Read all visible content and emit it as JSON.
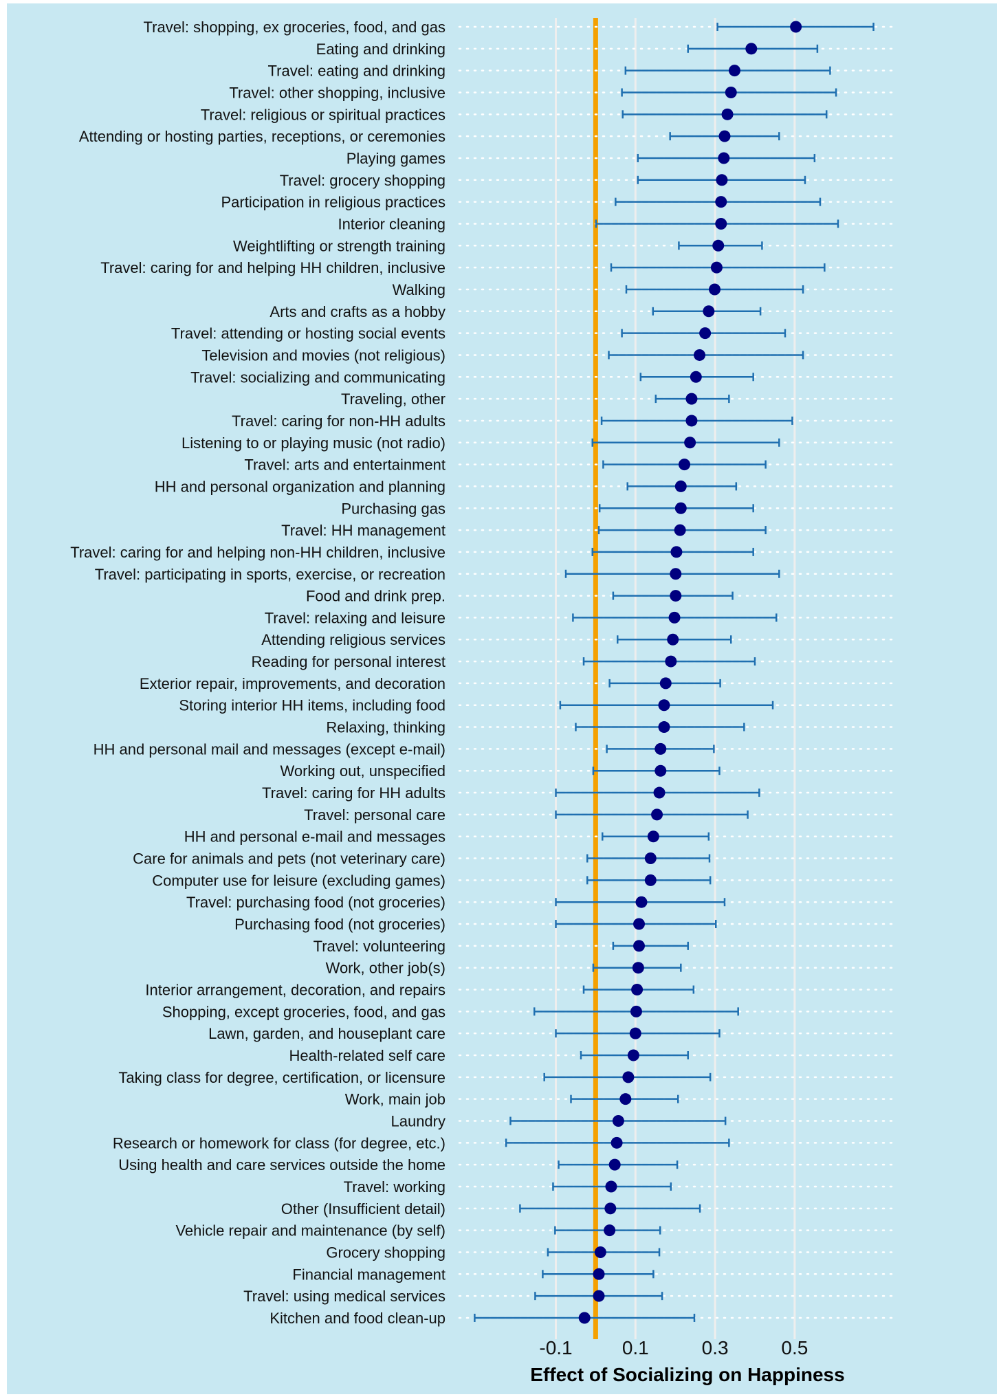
{
  "chart_data": {
    "type": "scatter",
    "subtype": "forest-plot-point-with-error-bars",
    "title": "",
    "xlabel": "Effect of Socializing on Happiness",
    "ylabel": "",
    "xticks": [
      -0.1,
      0.1,
      0.3,
      0.5
    ],
    "xtick_labels": [
      "-0.1",
      "0.1",
      "0.3",
      "0.5"
    ],
    "xlim": [
      -0.35,
      0.75
    ],
    "reference_line": 0,
    "colors": {
      "point": "#00007f",
      "errorbar": "#1f6fb0",
      "reference": "#f5a000",
      "background": "#c8e8f2",
      "grid": "#eeeeee"
    },
    "categories": [
      "Travel: shopping, ex groceries, food, and gas",
      "Eating and drinking",
      "Travel: eating and drinking",
      "Travel: other shopping, inclusive",
      "Travel: religious or spiritual practices",
      "Attending or hosting parties, receptions, or ceremonies",
      "Playing games",
      "Travel: grocery shopping",
      "Participation in religious practices",
      "Interior cleaning",
      "Weightlifting or strength training",
      "Travel: caring for and helping HH children, inclusive",
      "Walking",
      "Arts and crafts as a hobby",
      "Travel: attending or hosting social events",
      "Television and movies (not religious)",
      "Travel: socializing and communicating",
      "Traveling, other",
      "Travel: caring for non-HH adults",
      "Listening to or playing music (not radio)",
      "Travel: arts and entertainment",
      "HH and personal organization and planning",
      "Purchasing gas",
      "Travel: HH management",
      "Travel: caring for and helping non-HH children, inclusive",
      "Travel: participating in sports, exercise, or recreation",
      "Food and drink prep.",
      "Travel: relaxing and leisure",
      "Attending religious services",
      "Reading for personal interest",
      "Exterior repair, improvements, and decoration",
      "Storing interior HH items, including food",
      "Relaxing, thinking",
      "HH and personal mail and messages (except e-mail)",
      "Working out, unspecified",
      "Travel: caring for HH adults",
      "Travel: personal care",
      "HH and personal e-mail and messages",
      "Care for animals and pets (not veterinary care)",
      "Computer use for leisure (excluding games)",
      "Travel: purchasing food (not groceries)",
      "Purchasing food (not groceries)",
      "Travel: volunteering",
      "Work, other job(s)",
      "Interior arrangement, decoration, and repairs",
      "Shopping, except groceries, food, and gas",
      "Lawn, garden, and houseplant care",
      "Health-related self care",
      "Taking class for degree, certification, or licensure",
      "Work, main job",
      "Laundry",
      "Research or homework for class (for degree, etc.)",
      "Using health and care services outside the home",
      "Travel: working",
      "Other (Insufficient detail)",
      "Vehicle repair and maintenance (by self)",
      "Grocery shopping",
      "Financial management",
      "Travel: using medical services",
      "Kitchen and food clean-up"
    ],
    "estimates": [
      0.503,
      0.391,
      0.349,
      0.34,
      0.331,
      0.324,
      0.322,
      0.317,
      0.315,
      0.315,
      0.308,
      0.304,
      0.299,
      0.284,
      0.275,
      0.261,
      0.252,
      0.241,
      0.241,
      0.237,
      0.223,
      0.214,
      0.214,
      0.212,
      0.203,
      0.201,
      0.201,
      0.198,
      0.194,
      0.189,
      0.176,
      0.172,
      0.172,
      0.163,
      0.163,
      0.16,
      0.154,
      0.145,
      0.138,
      0.138,
      0.115,
      0.109,
      0.109,
      0.107,
      0.104,
      0.102,
      0.1,
      0.095,
      0.082,
      0.075,
      0.057,
      0.053,
      0.048,
      0.039,
      0.037,
      0.035,
      0.012,
      0.008,
      0.008,
      -0.028
    ],
    "lower": [
      0.306,
      0.232,
      0.075,
      0.066,
      0.068,
      0.187,
      0.106,
      0.106,
      0.05,
      0.001,
      0.209,
      0.039,
      0.077,
      0.144,
      0.066,
      0.033,
      0.113,
      0.151,
      0.015,
      -0.008,
      0.019,
      0.08,
      0.01,
      0.008,
      -0.008,
      -0.075,
      0.044,
      -0.057,
      0.055,
      -0.03,
      0.035,
      -0.089,
      -0.05,
      0.028,
      -0.006,
      -0.1,
      -0.1,
      0.017,
      -0.021,
      -0.021,
      -0.1,
      -0.1,
      0.044,
      -0.006,
      -0.03,
      -0.154,
      -0.1,
      -0.037,
      -0.129,
      -0.062,
      -0.214,
      -0.225,
      -0.093,
      -0.107,
      -0.19,
      -0.102,
      -0.12,
      -0.133,
      -0.152,
      -0.304
    ],
    "upper": [
      0.698,
      0.557,
      0.589,
      0.604,
      0.58,
      0.461,
      0.55,
      0.526,
      0.564,
      0.609,
      0.418,
      0.575,
      0.521,
      0.414,
      0.476,
      0.521,
      0.396,
      0.335,
      0.494,
      0.461,
      0.427,
      0.353,
      0.396,
      0.427,
      0.396,
      0.461,
      0.344,
      0.454,
      0.34,
      0.4,
      0.313,
      0.445,
      0.373,
      0.297,
      0.311,
      0.411,
      0.382,
      0.284,
      0.286,
      0.288,
      0.324,
      0.302,
      0.232,
      0.214,
      0.246,
      0.358,
      0.311,
      0.232,
      0.288,
      0.207,
      0.326,
      0.335,
      0.205,
      0.189,
      0.262,
      0.162,
      0.16,
      0.145,
      0.167,
      0.248
    ],
    "grid": true,
    "legend": "none"
  }
}
